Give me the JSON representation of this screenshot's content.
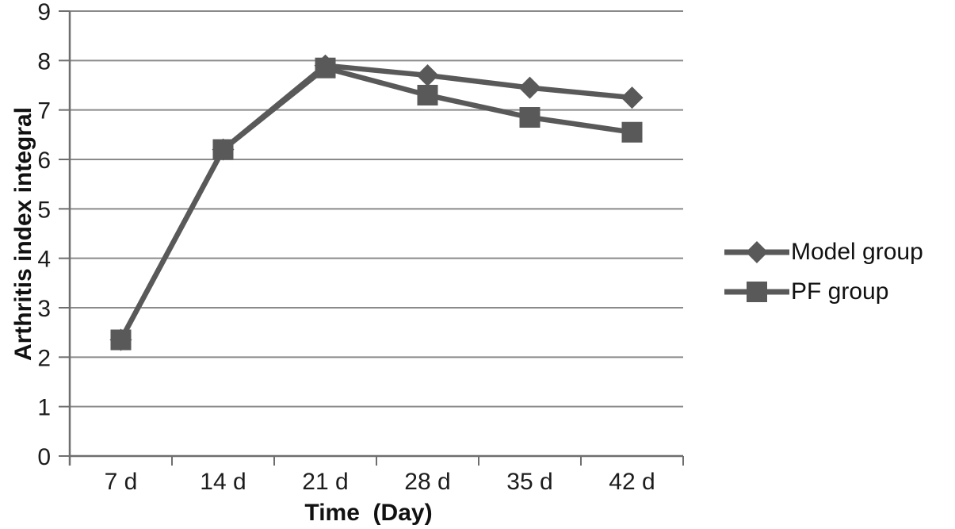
{
  "chart_data": {
    "type": "line",
    "title": "",
    "xlabel": "Time  (Day)",
    "ylabel": "Arthritis index integral",
    "categories": [
      "7 d",
      "14 d",
      "21 d",
      "28 d",
      "35 d",
      "42 d"
    ],
    "series": [
      {
        "name": "Model group",
        "marker": "diamond",
        "values": [
          2.35,
          6.2,
          7.9,
          7.7,
          7.45,
          7.25
        ]
      },
      {
        "name": "PF group",
        "marker": "square",
        "values": [
          2.35,
          6.2,
          7.85,
          7.3,
          6.85,
          6.55
        ]
      }
    ],
    "ylim": [
      0,
      9
    ],
    "yticks": [
      0,
      1,
      2,
      3,
      4,
      5,
      6,
      7,
      8,
      9
    ],
    "grid": true,
    "legend_position": "right",
    "colors": {
      "series": "#595959",
      "grid": "#8a8a8a",
      "axis": "#6e6e6e",
      "text": "#1c1c1c"
    }
  }
}
